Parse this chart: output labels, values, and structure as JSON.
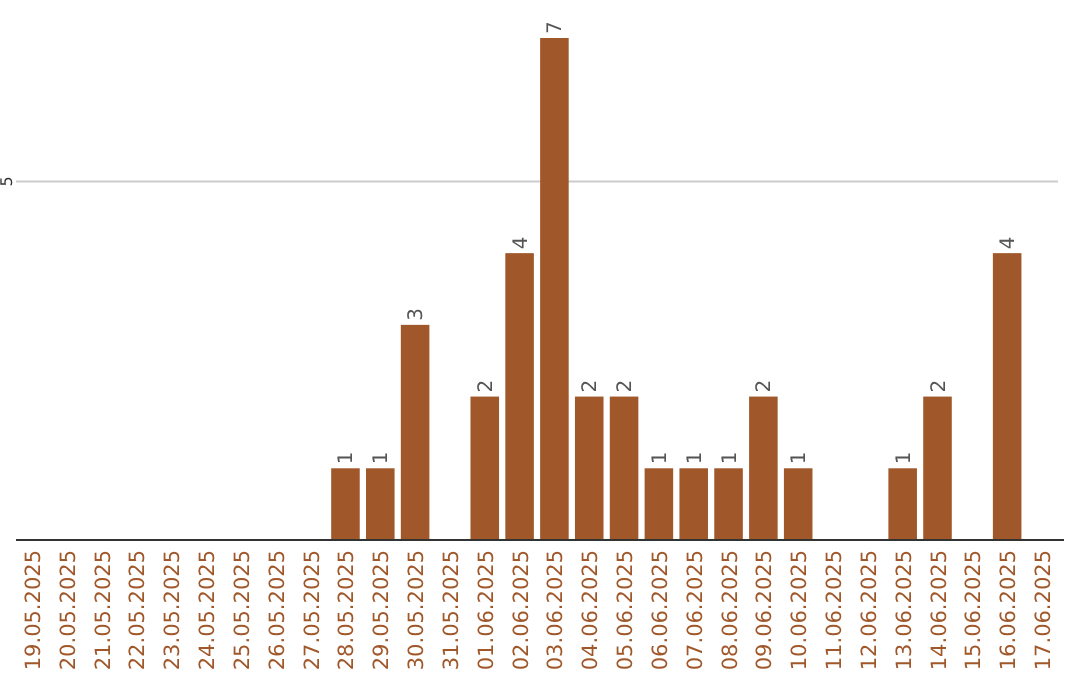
{
  "chart_data": {
    "type": "bar",
    "categories": [
      "19.05.2025",
      "20.05.2025",
      "21.05.2025",
      "22.05.2025",
      "23.05.2025",
      "24.05.2025",
      "25.05.2025",
      "26.05.2025",
      "27.05.2025",
      "28.05.2025",
      "29.05.2025",
      "30.05.2025",
      "31.05.2025",
      "01.06.2025",
      "02.06.2025",
      "03.06.2025",
      "04.06.2025",
      "05.06.2025",
      "06.06.2025",
      "07.06.2025",
      "08.06.2025",
      "09.06.2025",
      "10.06.2025",
      "11.06.2025",
      "12.06.2025",
      "13.06.2025",
      "14.06.2025",
      "15.06.2025",
      "16.06.2025",
      "17.06.2025"
    ],
    "values": [
      0,
      0,
      0,
      0,
      0,
      0,
      0,
      0,
      0,
      1,
      1,
      3,
      0,
      2,
      4,
      7,
      2,
      2,
      1,
      1,
      1,
      2,
      1,
      0,
      0,
      1,
      2,
      0,
      4,
      0
    ],
    "value_labels": [
      null,
      null,
      null,
      null,
      null,
      null,
      null,
      null,
      null,
      "1",
      "1",
      "3",
      null,
      "2",
      "4",
      "7",
      "2",
      "2",
      "1",
      "1",
      "1",
      "2",
      "1",
      null,
      null,
      "1",
      "2",
      null,
      "4",
      null
    ],
    "color": "#a0582a",
    "ylim": [
      0,
      7
    ],
    "yticks": [
      5
    ],
    "grid": "y"
  }
}
